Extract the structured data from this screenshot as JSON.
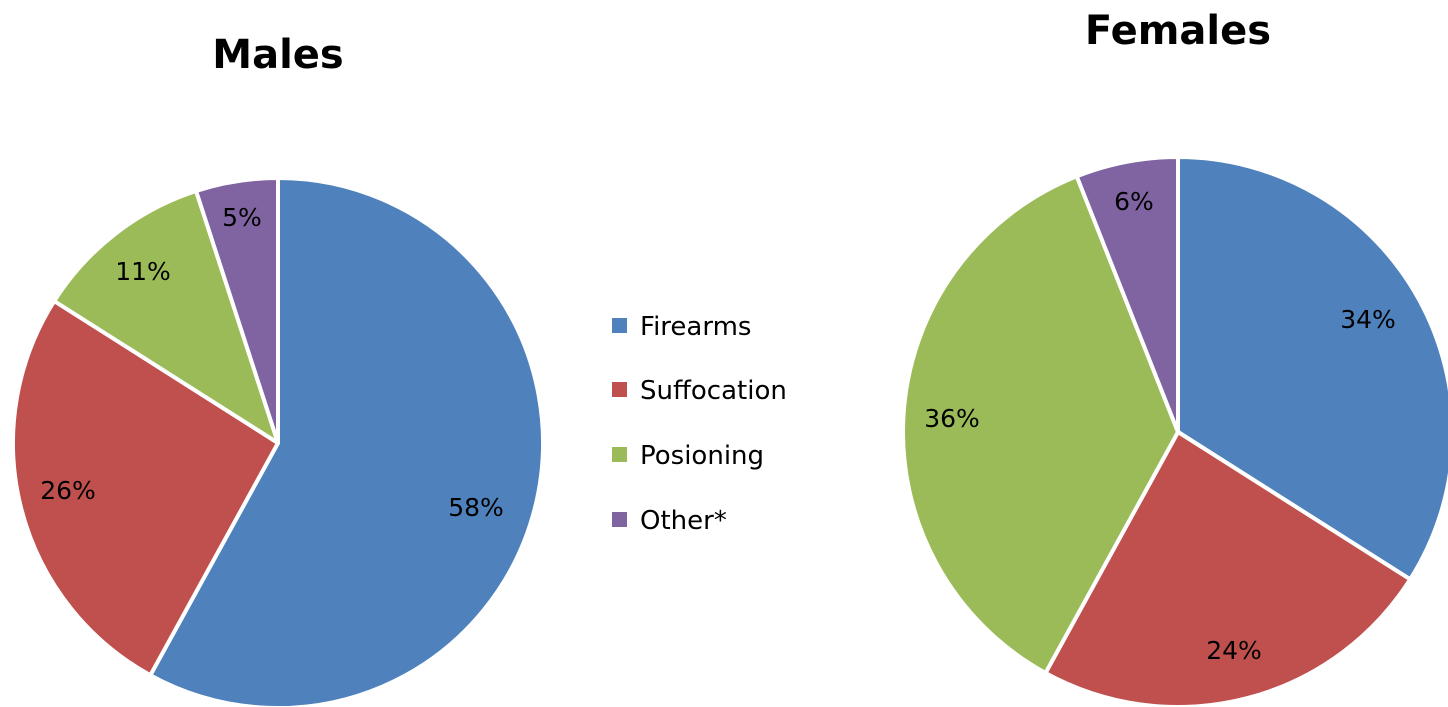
{
  "chart_data": {
    "type": "pie",
    "categories": [
      "Firearms",
      "Suffocation",
      "Posioning",
      "Other*"
    ],
    "colors": [
      "#4f81bd",
      "#c0504d",
      "#9bbb59",
      "#8064a2"
    ],
    "legend_position": "center",
    "charts": [
      {
        "title": "Males",
        "values": [
          58,
          26,
          11,
          5
        ],
        "labels": [
          "58%",
          "26%",
          "11%",
          "5%"
        ]
      },
      {
        "title": "Females",
        "values": [
          34,
          24,
          36,
          6
        ],
        "labels": [
          "34%",
          "24%",
          "36%",
          "6%"
        ]
      }
    ]
  }
}
